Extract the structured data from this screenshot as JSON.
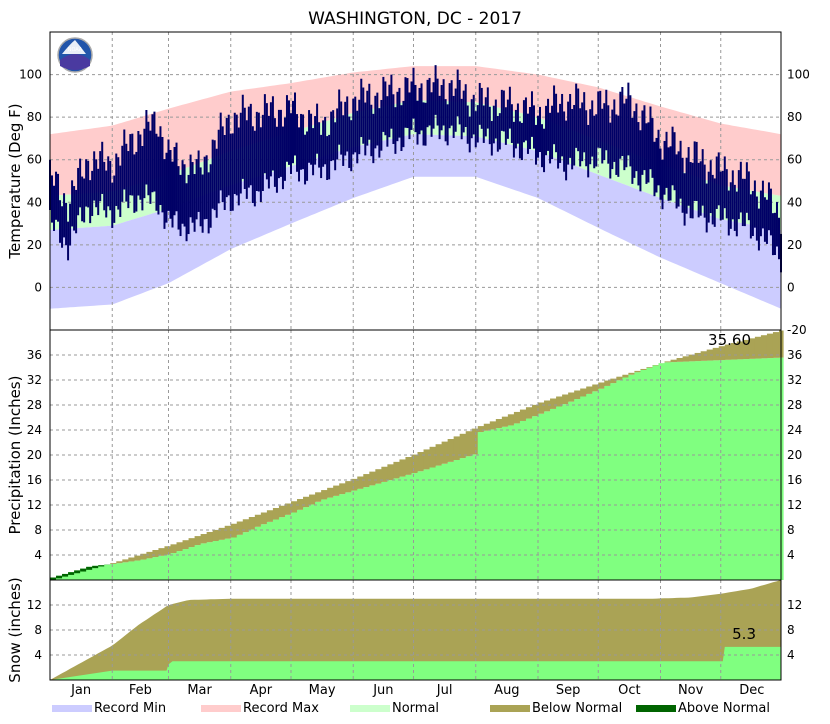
{
  "title": "WASHINGTON, DC - 2017",
  "months": [
    "Jan",
    "Feb",
    "Mar",
    "Apr",
    "May",
    "Jun",
    "Jul",
    "Aug",
    "Sep",
    "Oct",
    "Nov",
    "Dec"
  ],
  "legend": [
    {
      "label": "Record Min",
      "color": "#ccccff"
    },
    {
      "label": "Record Max",
      "color": "#ffcccc"
    },
    {
      "label": "Normal",
      "color": "#ccffcc"
    },
    {
      "label": "Below Normal",
      "color": "#aaa355"
    },
    {
      "label": "Above Normal",
      "color": "#006400"
    }
  ],
  "colors": {
    "record_min": "#ccccff",
    "record_max": "#ffcccc",
    "normal": "#ccffcc",
    "observed": "#000066",
    "precip_actual": "#80ff80",
    "below_normal": "#aaa355",
    "above_normal": "#006400",
    "grid": "#999999"
  },
  "chart_data": [
    {
      "type": "area",
      "panel": "temperature",
      "ylabel": "Temperature (Deg F)",
      "ylim": [
        -20,
        120
      ],
      "yticks": [
        -20,
        0,
        20,
        40,
        60,
        80,
        100
      ],
      "x_unit": "day of year",
      "series": [
        {
          "name": "Record Max",
          "x": [
            1,
            32,
            60,
            91,
            121,
            152,
            182,
            213,
            244,
            274,
            305,
            335,
            365
          ],
          "values": [
            72,
            76,
            84,
            92,
            96,
            101,
            104,
            104,
            100,
            94,
            85,
            77,
            72
          ]
        },
        {
          "name": "Normal",
          "x": [
            1,
            32,
            60,
            91,
            121,
            152,
            182,
            213,
            244,
            274,
            305,
            335,
            365
          ],
          "values": [
            43,
            45,
            53,
            64,
            73,
            82,
            88,
            87,
            80,
            69,
            58,
            48,
            43
          ]
        },
        {
          "name": "Record Min",
          "x": [
            1,
            32,
            60,
            91,
            121,
            152,
            182,
            213,
            244,
            274,
            305,
            335,
            365
          ],
          "values": [
            -10,
            -8,
            2,
            18,
            30,
            42,
            52,
            52,
            42,
            28,
            14,
            2,
            -10
          ]
        }
      ],
      "observed_daily_max_min": {
        "x": [
          1,
          10,
          20,
          32,
          45,
          55,
          60,
          75,
          91,
          105,
          121,
          135,
          152,
          170,
          182,
          200,
          213,
          230,
          244,
          258,
          274,
          290,
          305,
          320,
          335,
          350,
          365
        ],
        "high": [
          52,
          40,
          60,
          58,
          72,
          78,
          62,
          55,
          80,
          82,
          84,
          76,
          88,
          92,
          94,
          95,
          88,
          86,
          82,
          88,
          85,
          88,
          70,
          62,
          55,
          50,
          35
        ],
        "low": [
          30,
          20,
          38,
          35,
          42,
          40,
          30,
          28,
          42,
          45,
          55,
          55,
          62,
          68,
          72,
          74,
          70,
          68,
          62,
          58,
          60,
          55,
          45,
          35,
          32,
          28,
          15
        ]
      }
    },
    {
      "type": "area",
      "panel": "precipitation",
      "ylabel": "Precipitation (Inches)",
      "ylim": [
        0,
        40
      ],
      "yticks": [
        4,
        8,
        12,
        16,
        20,
        24,
        28,
        32,
        36
      ],
      "annotation": "35.60",
      "series": [
        {
          "name": "Normal",
          "x": [
            1,
            32,
            60,
            91,
            121,
            152,
            182,
            213,
            244,
            274,
            305,
            335,
            365
          ],
          "values": [
            0,
            2.8,
            5.6,
            9.0,
            12.6,
            16.3,
            20.2,
            24.5,
            28.4,
            31.6,
            34.8,
            37.5,
            40.0
          ]
        },
        {
          "name": "Actual",
          "x": [
            1,
            20,
            32,
            45,
            60,
            75,
            91,
            105,
            121,
            135,
            152,
            165,
            182,
            200,
            212,
            213,
            230,
            244,
            258,
            274,
            290,
            305,
            320,
            335,
            350,
            365
          ],
          "values": [
            0.4,
            2.2,
            2.6,
            3.2,
            4.2,
            5.8,
            6.8,
            8.8,
            10.8,
            12.8,
            14.4,
            15.6,
            17.2,
            19.0,
            20.2,
            23.6,
            24.8,
            26.6,
            28.4,
            30.6,
            33.0,
            34.8,
            35.0,
            35.2,
            35.4,
            35.6
          ]
        }
      ]
    },
    {
      "type": "area",
      "panel": "snow",
      "ylabel": "Snow (inches)",
      "ylim": [
        0,
        16
      ],
      "yticks": [
        4,
        8,
        12
      ],
      "annotation": "5.3",
      "series": [
        {
          "name": "Normal",
          "x": [
            1,
            15,
            32,
            45,
            60,
            70,
            91,
            150,
            300,
            320,
            335,
            350,
            365
          ],
          "values": [
            0,
            2.5,
            5.5,
            8.8,
            12.0,
            12.8,
            13.0,
            13.0,
            13.0,
            13.2,
            13.8,
            14.6,
            16.0
          ]
        },
        {
          "name": "Actual",
          "x": [
            1,
            32,
            59,
            60,
            62,
            336,
            337,
            365
          ],
          "values": [
            0,
            1.5,
            1.5,
            2.5,
            3.0,
            3.0,
            5.3,
            5.3
          ]
        }
      ]
    }
  ]
}
